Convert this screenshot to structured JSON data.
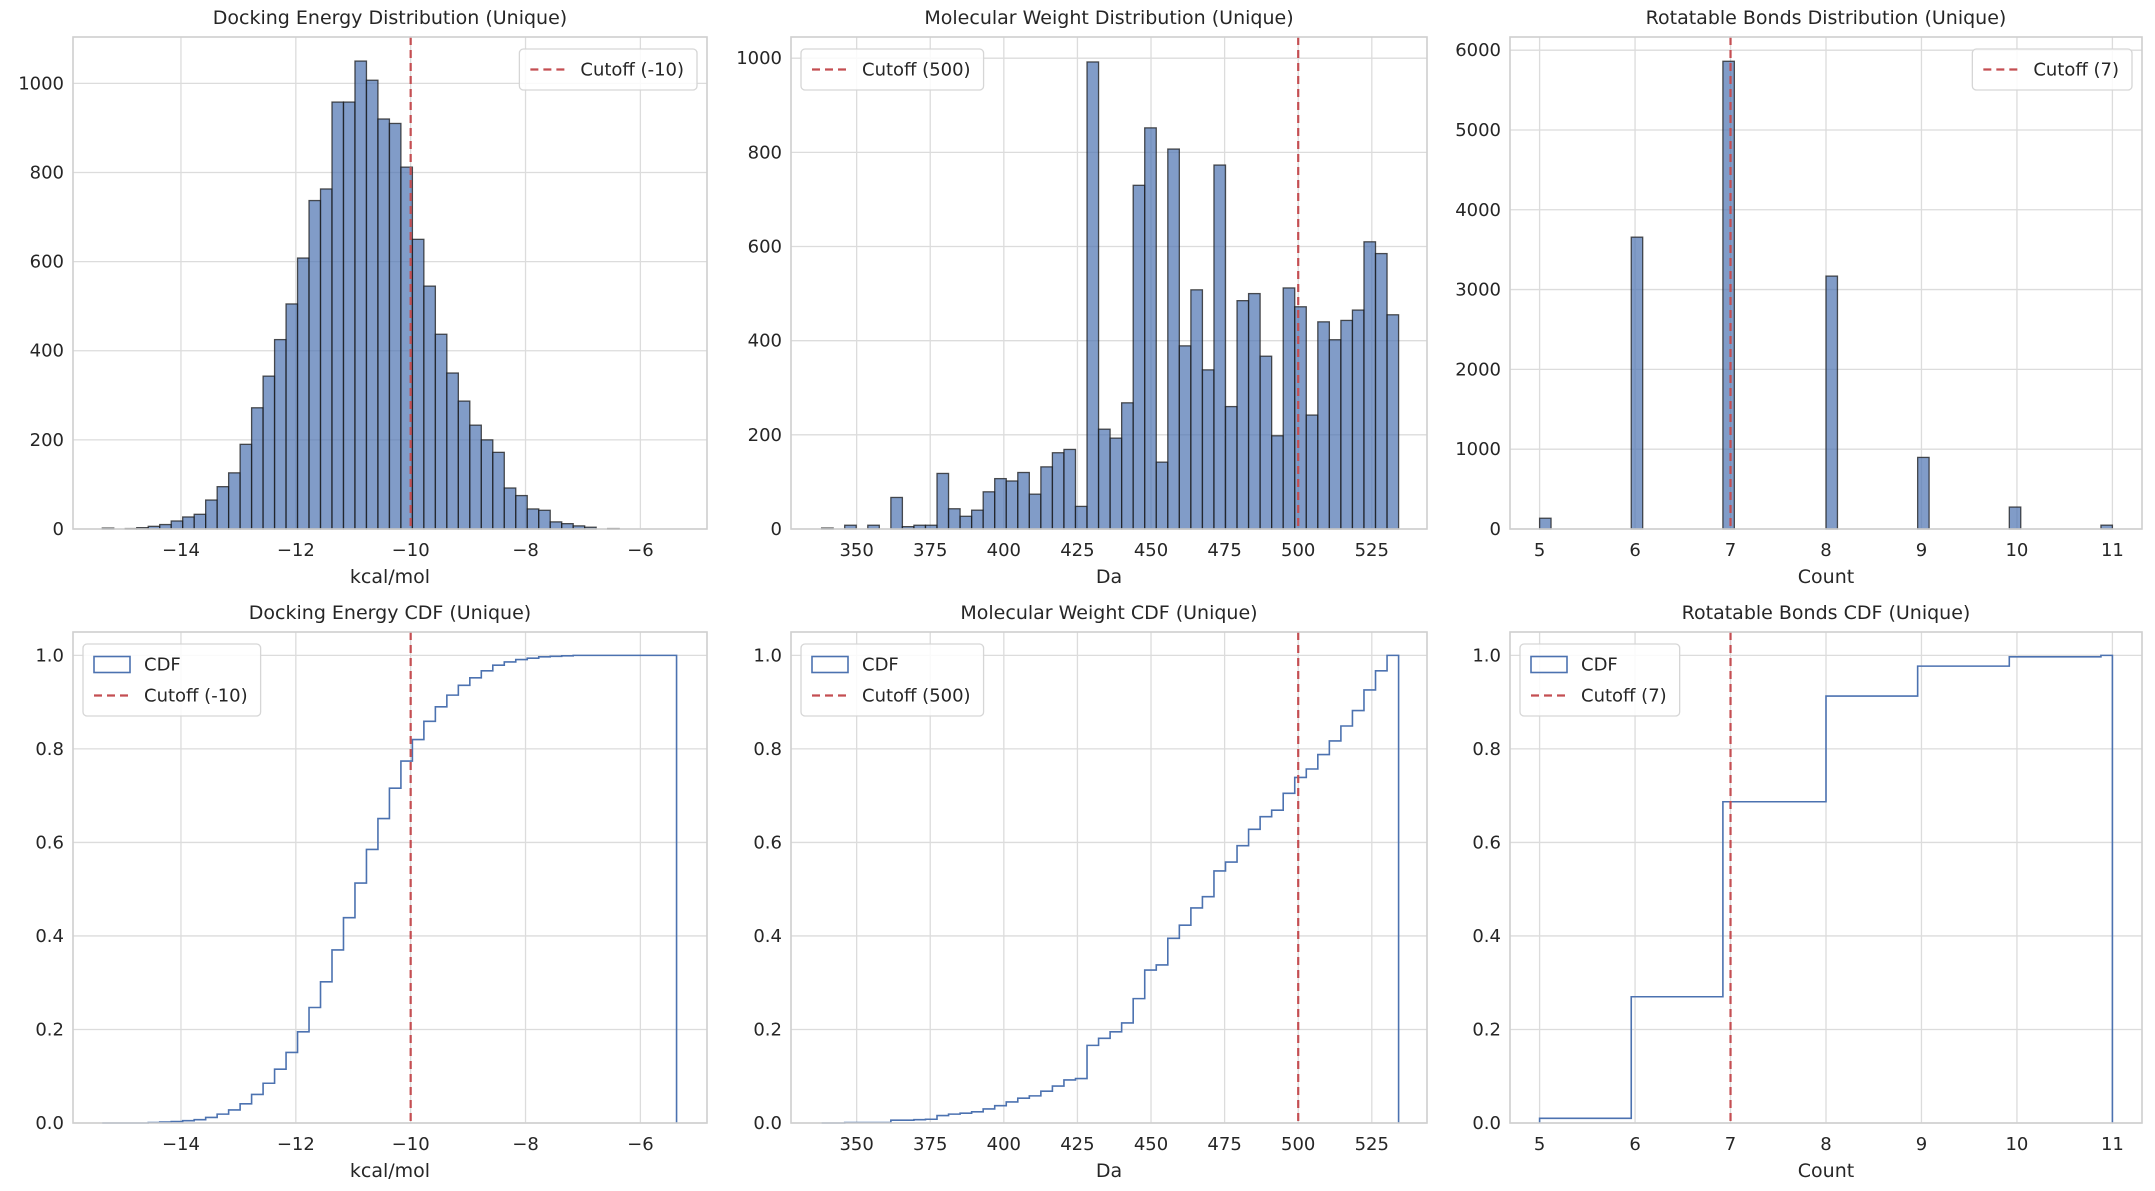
{
  "colors": {
    "bar_fill": "#4c72b0",
    "bar_edge": "#1a1a1a",
    "cdf_line": "#4c72b0",
    "cutoff": "#c44e52",
    "grid": "#dcdcdc",
    "frame": "#cfcfcf"
  },
  "chart_data": [
    {
      "type": "bar",
      "subtype": "histogram",
      "title": "Docking Energy Distribution (Unique)",
      "xlabel": "kcal/mol",
      "ylabel": "",
      "bin_start": -15.37,
      "bin_width": 0.2,
      "counts": [
        2,
        0,
        1,
        3,
        6,
        10,
        18,
        27,
        33,
        65,
        95,
        126,
        190,
        272,
        343,
        425,
        505,
        608,
        737,
        763,
        958,
        958,
        1050,
        1007,
        920,
        910,
        812,
        650,
        545,
        437,
        350,
        287,
        233,
        200,
        172,
        92,
        75,
        45,
        42,
        16,
        12,
        7,
        4,
        0,
        1,
        0,
        0,
        0,
        0,
        0
      ],
      "xlim": [
        -15.88,
        -4.84
      ],
      "ylim": [
        0,
        1104
      ],
      "xticks": [
        -14,
        -12,
        -10,
        -8,
        -6
      ],
      "xtick_labels": [
        "−14",
        "−12",
        "−10",
        "−8",
        "−6"
      ],
      "yticks": [
        0,
        200,
        400,
        600,
        800,
        1000
      ],
      "ytick_labels": [
        "0",
        "200",
        "400",
        "600",
        "800",
        "1000"
      ],
      "cutoff": -10,
      "grid": true,
      "legend_position": "top-right",
      "legend": [
        {
          "label": "Cutoff (-10)",
          "kind": "dashed-line"
        }
      ]
    },
    {
      "type": "bar",
      "subtype": "histogram",
      "title": "Molecular Weight Distribution (Unique)",
      "xlabel": "Da",
      "ylabel": "",
      "bin_start": 338.1,
      "bin_width": 3.92,
      "counts": [
        2,
        0,
        8,
        0,
        8,
        0,
        67,
        5,
        8,
        8,
        118,
        43,
        27,
        40,
        79,
        107,
        102,
        120,
        74,
        132,
        162,
        169,
        48,
        992,
        212,
        193,
        268,
        730,
        852,
        142,
        807,
        389,
        508,
        338,
        773,
        260,
        485,
        500,
        367,
        198,
        512,
        472,
        242,
        440,
        402,
        443,
        465,
        610,
        585,
        455
      ],
      "xlim": [
        327.7,
        543.75
      ],
      "ylim": [
        0,
        1045
      ],
      "xticks": [
        350,
        375,
        400,
        425,
        450,
        475,
        500,
        525
      ],
      "xtick_labels": [
        "350",
        "375",
        "400",
        "425",
        "450",
        "475",
        "500",
        "525"
      ],
      "yticks": [
        0,
        200,
        400,
        600,
        800,
        1000
      ],
      "ytick_labels": [
        "0",
        "200",
        "400",
        "600",
        "800",
        "1000"
      ],
      "cutoff": 500,
      "grid": true,
      "legend_position": "top-left",
      "legend": [
        {
          "label": "Cutoff (500)",
          "kind": "dashed-line"
        }
      ]
    },
    {
      "type": "bar",
      "subtype": "histogram",
      "title": "Rotatable Bonds Distribution (Unique)",
      "xlabel": "Count",
      "ylabel": "",
      "bin_start": 5,
      "bin_width": 0.12,
      "counts": [
        135,
        0,
        0,
        0,
        0,
        0,
        0,
        0,
        3657,
        0,
        0,
        0,
        0,
        0,
        0,
        0,
        5861,
        0,
        0,
        0,
        0,
        0,
        0,
        0,
        0,
        3169,
        0,
        0,
        0,
        0,
        0,
        0,
        0,
        897,
        0,
        0,
        0,
        0,
        0,
        0,
        0,
        275,
        0,
        0,
        0,
        0,
        0,
        0,
        0,
        48
      ],
      "xlim": [
        4.69,
        11.31
      ],
      "ylim": [
        0,
        6165
      ],
      "xticks": [
        5,
        6,
        7,
        8,
        9,
        10,
        11
      ],
      "xtick_labels": [
        "5",
        "6",
        "7",
        "8",
        "9",
        "10",
        "11"
      ],
      "yticks": [
        0,
        1000,
        2000,
        3000,
        4000,
        5000,
        6000
      ],
      "ytick_labels": [
        "0",
        "1000",
        "2000",
        "3000",
        "4000",
        "5000",
        "6000"
      ],
      "cutoff": 7,
      "grid": true,
      "legend_position": "top-right",
      "legend": [
        {
          "label": "Cutoff (7)",
          "kind": "dashed-line"
        }
      ]
    },
    {
      "type": "line",
      "subtype": "cdf-step",
      "title": "Docking Energy CDF (Unique)",
      "xlabel": "kcal/mol",
      "ylabel": "",
      "bin_start": -15.37,
      "bin_width": 0.2,
      "cdf": [
        0,
        0,
        0,
        0,
        0.001,
        0.002,
        0.003,
        0.005,
        0.007,
        0.012,
        0.019,
        0.028,
        0.041,
        0.061,
        0.085,
        0.115,
        0.151,
        0.195,
        0.247,
        0.302,
        0.37,
        0.439,
        0.513,
        0.585,
        0.651,
        0.716,
        0.774,
        0.82,
        0.859,
        0.89,
        0.915,
        0.936,
        0.952,
        0.967,
        0.979,
        0.986,
        0.991,
        0.994,
        0.997,
        0.998,
        0.999,
        1,
        1,
        1,
        1,
        1,
        1,
        1,
        1,
        1
      ],
      "xlim": [
        -15.88,
        -4.84
      ],
      "ylim": [
        0,
        1.05
      ],
      "xticks": [
        -14,
        -12,
        -10,
        -8,
        -6
      ],
      "xtick_labels": [
        "−14",
        "−12",
        "−10",
        "−8",
        "−6"
      ],
      "yticks": [
        0,
        0.2,
        0.4,
        0.6,
        0.8,
        1.0
      ],
      "ytick_labels": [
        "0.0",
        "0.2",
        "0.4",
        "0.6",
        "0.8",
        "1.0"
      ],
      "cutoff": -10,
      "grid": true,
      "legend_position": "top-left",
      "legend": [
        {
          "label": "CDF",
          "kind": "outline-box"
        },
        {
          "label": "Cutoff (-10)",
          "kind": "dashed-line"
        }
      ]
    },
    {
      "type": "line",
      "subtype": "cdf-step",
      "title": "Molecular Weight CDF (Unique)",
      "xlabel": "Da",
      "ylabel": "",
      "bin_start": 338.1,
      "bin_width": 3.92,
      "cdf": [
        0,
        0,
        0.001,
        0.001,
        0.001,
        0.001,
        0.006,
        0.006,
        0.007,
        0.008,
        0.016,
        0.019,
        0.021,
        0.024,
        0.03,
        0.037,
        0.045,
        0.053,
        0.058,
        0.068,
        0.079,
        0.092,
        0.095,
        0.166,
        0.181,
        0.195,
        0.214,
        0.266,
        0.327,
        0.338,
        0.395,
        0.423,
        0.46,
        0.484,
        0.539,
        0.558,
        0.593,
        0.628,
        0.655,
        0.669,
        0.705,
        0.739,
        0.757,
        0.788,
        0.817,
        0.849,
        0.882,
        0.926,
        0.967,
        1.0
      ],
      "xlim": [
        327.7,
        543.75
      ],
      "ylim": [
        0,
        1.05
      ],
      "xticks": [
        350,
        375,
        400,
        425,
        450,
        475,
        500,
        525
      ],
      "xtick_labels": [
        "350",
        "375",
        "400",
        "425",
        "450",
        "475",
        "500",
        "525"
      ],
      "yticks": [
        0,
        0.2,
        0.4,
        0.6,
        0.8,
        1.0
      ],
      "ytick_labels": [
        "0.0",
        "0.2",
        "0.4",
        "0.6",
        "0.8",
        "1.0"
      ],
      "cutoff": 500,
      "grid": true,
      "legend_position": "top-left",
      "legend": [
        {
          "label": "CDF",
          "kind": "outline-box"
        },
        {
          "label": "Cutoff (500)",
          "kind": "dashed-line"
        }
      ]
    },
    {
      "type": "line",
      "subtype": "cdf-step",
      "title": "Rotatable Bonds CDF (Unique)",
      "xlabel": "Count",
      "ylabel": "",
      "bin_start": 5,
      "bin_width": 0.12,
      "cdf": [
        0.01,
        0.01,
        0.01,
        0.01,
        0.01,
        0.01,
        0.01,
        0.01,
        0.27,
        0.27,
        0.27,
        0.27,
        0.27,
        0.27,
        0.27,
        0.27,
        0.687,
        0.687,
        0.687,
        0.687,
        0.687,
        0.687,
        0.687,
        0.687,
        0.687,
        0.913,
        0.913,
        0.913,
        0.913,
        0.913,
        0.913,
        0.913,
        0.913,
        0.977,
        0.977,
        0.977,
        0.977,
        0.977,
        0.977,
        0.977,
        0.977,
        0.997,
        0.997,
        0.997,
        0.997,
        0.997,
        0.997,
        0.997,
        0.997,
        1.0
      ],
      "xlim": [
        4.69,
        11.31
      ],
      "ylim": [
        0,
        1.05
      ],
      "xticks": [
        5,
        6,
        7,
        8,
        9,
        10,
        11
      ],
      "xtick_labels": [
        "5",
        "6",
        "7",
        "8",
        "9",
        "10",
        "11"
      ],
      "yticks": [
        0,
        0.2,
        0.4,
        0.6,
        0.8,
        1.0
      ],
      "ytick_labels": [
        "0.0",
        "0.2",
        "0.4",
        "0.6",
        "0.8",
        "1.0"
      ],
      "cutoff": 7,
      "grid": true,
      "legend_position": "top-left",
      "legend": [
        {
          "label": "CDF",
          "kind": "outline-box"
        },
        {
          "label": "Cutoff (7)",
          "kind": "dashed-line"
        }
      ]
    }
  ]
}
